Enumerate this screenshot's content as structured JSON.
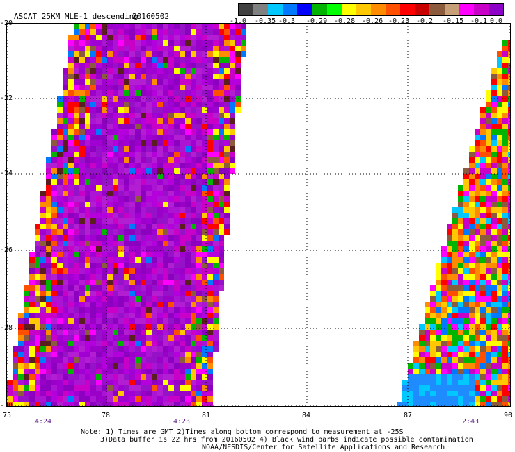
{
  "header": {
    "title": "ASCAT 25KM MLE-1 descending",
    "date": "20160502"
  },
  "colorbar": {
    "colors": [
      "#404040",
      "#808080",
      "#00c8ff",
      "#0078ff",
      "#0000ff",
      "#00b400",
      "#00ff00",
      "#ffff00",
      "#ffc800",
      "#ff8c00",
      "#ff5000",
      "#ff0000",
      "#c80000",
      "#8c5a3c",
      "#c8a078",
      "#ff00ff",
      "#c800c8",
      "#8c00c8"
    ],
    "labels": [
      "-1.0",
      "-0.35",
      "-0.3",
      "-0.29",
      "-0.28",
      "-0.26",
      "-0.23",
      "-0.2",
      "-0.15",
      "-0.1",
      "0.0"
    ]
  },
  "map": {
    "lat_labels": [
      "-20",
      "-22",
      "-24",
      "-26",
      "-28",
      "-30"
    ],
    "lon_labels": [
      "75",
      "78",
      "81",
      "84",
      "87",
      "90"
    ],
    "times": [
      "4:24",
      "4:23",
      "2:43"
    ]
  },
  "notes": {
    "line1": "Note: 1) Times are GMT 2)Times along bottom correspond to measurement at -25S",
    "line2": "3)Data buffer is 22 hrs from 20160502 4) Black wind barbs indicate possible contamination",
    "line3": "NOAA/NESDIS/Center for Satellite Applications and Research"
  }
}
